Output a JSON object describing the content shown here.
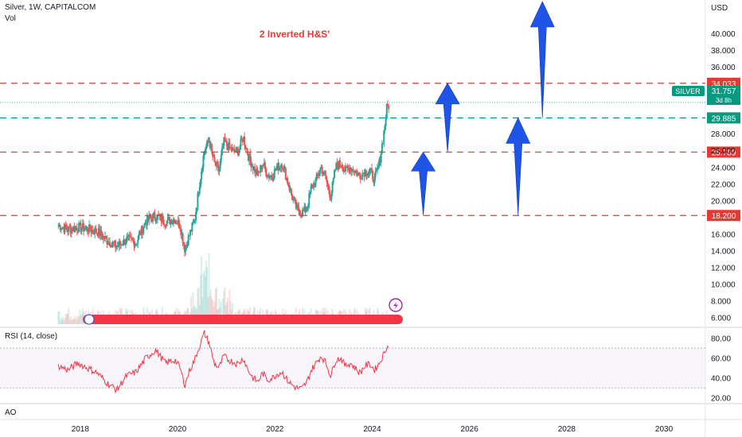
{
  "header": {
    "symbol_line": "Silver, 1W, CAPITALCOM",
    "vol_label": "Vol",
    "currency": "USD"
  },
  "annotation": {
    "text": "2 Inverted H&S'",
    "color": "#e53935"
  },
  "rsi": {
    "label": "RSI (14, close)",
    "levels": [
      70,
      30
    ]
  },
  "ao": {
    "label": "AO"
  },
  "colors": {
    "up": "#26a69a",
    "down": "#ef5350",
    "support": "#e53935",
    "neckline": "#089981",
    "arrow": "#1e55e6",
    "rsi_line": "#f23645"
  },
  "chart_data": [
    {
      "type": "line",
      "title": "",
      "series": [
        {
          "name": "",
          "x": [
            2017.6,
            2017.8,
            2018.0,
            2018.2,
            2018.4,
            2018.6,
            2018.8,
            2019.0,
            2019.2,
            2019.4,
            2019.6,
            2019.8,
            2020.0,
            2020.1,
            2020.2,
            2020.3,
            2020.4,
            2020.5,
            2020.6,
            2020.7,
            2020.8,
            2020.9,
            2021.0,
            2021.1,
            2021.2,
            2021.3,
            2021.4,
            2021.5,
            2021.6,
            2021.7,
            2021.8,
            2021.9,
            2022.0,
            2022.1,
            2022.2,
            2022.3,
            2022.4,
            2022.5,
            2022.6,
            2022.7,
            2022.8,
            2022.9,
            2023.0,
            2023.1,
            2023.2,
            2023.3,
            2023.4,
            2023.5,
            2023.6,
            2023.7,
            2023.8,
            2023.9,
            2024.0,
            2024.1,
            2024.2,
            2024.3,
            2024.35,
            2024.4
          ],
          "y": [
            17.0,
            16.5,
            16.8,
            16.6,
            16.3,
            15.2,
            14.5,
            15.3,
            15.0,
            17.5,
            18.2,
            17.5,
            17.8,
            17.0,
            14.2,
            16.0,
            17.6,
            22.0,
            26.0,
            27.2,
            24.5,
            23.5,
            27.0,
            26.4,
            25.8,
            26.0,
            27.6,
            25.4,
            24.0,
            23.0,
            24.5,
            23.0,
            23.0,
            24.0,
            24.5,
            22.5,
            20.5,
            19.0,
            18.5,
            19.0,
            21.5,
            22.5,
            24.0,
            22.5,
            20.5,
            24.0,
            24.5,
            23.5,
            24.0,
            23.5,
            23.0,
            23.5,
            23.5,
            22.5,
            24.5,
            28.5,
            31.0,
            31.5
          ]
        }
      ],
      "xlim": [
        2016.4,
        2030.9
      ],
      "ylim": [
        5.0,
        44.0
      ],
      "y_ticks": [
        "40.000",
        "38.000",
        "36.000",
        "28.000",
        "26.000",
        "24.000",
        "22.000",
        "20.000",
        "16.000",
        "14.000",
        "12.000",
        "10.000",
        "8.000",
        "6.000"
      ],
      "y_tick_values": [
        40,
        38,
        36,
        28,
        26,
        24,
        22,
        20,
        16,
        14,
        12,
        10,
        8,
        6
      ],
      "x_ticks": [
        "2018",
        "2020",
        "2022",
        "2024",
        "2026",
        "2028",
        "2030"
      ],
      "x_tick_values": [
        2018.05,
        2020.05,
        2022.05,
        2024.05,
        2026.05,
        2028.05,
        2030.05
      ],
      "horizontal_lines": [
        {
          "value": 34.033,
          "label": "34.033",
          "style": "dashed",
          "color": "#e53935"
        },
        {
          "value": 29.885,
          "label": "29.885",
          "style": "dashed",
          "color": "#089981"
        },
        {
          "value": 25.789,
          "label": "25.789",
          "style": "dashed",
          "color": "#e53935"
        },
        {
          "value": 18.2,
          "label": "18.200",
          "style": "dashed",
          "color": "#e53935"
        }
      ],
      "last_price": {
        "symbol": "SILVER",
        "value": "31.757",
        "countdown": "3d 8h",
        "color": "#089981"
      },
      "arrows": [
        {
          "x0": 2025.1,
          "y0": 18.2,
          "x1": 2025.1,
          "y1": 25.789
        },
        {
          "x0": 2025.6,
          "y0": 25.789,
          "x1": 2025.6,
          "y1": 34.033
        },
        {
          "x0": 2027.05,
          "y0": 18.2,
          "x1": 2027.05,
          "y1": 29.885
        },
        {
          "x0": 2027.55,
          "y0": 29.885,
          "x1": 2027.55,
          "y1": 44.0
        }
      ]
    },
    {
      "type": "line",
      "title": "RSI (14, close)",
      "series": [
        {
          "name": "",
          "x": [
            2017.6,
            2017.8,
            2018.0,
            2018.2,
            2018.4,
            2018.6,
            2018.8,
            2019.0,
            2019.2,
            2019.4,
            2019.6,
            2019.8,
            2020.0,
            2020.1,
            2020.2,
            2020.3,
            2020.4,
            2020.5,
            2020.6,
            2020.7,
            2020.8,
            2020.9,
            2021.0,
            2021.1,
            2021.2,
            2021.3,
            2021.4,
            2021.5,
            2021.6,
            2021.7,
            2021.8,
            2021.9,
            2022.0,
            2022.1,
            2022.2,
            2022.3,
            2022.4,
            2022.5,
            2022.6,
            2022.7,
            2022.8,
            2022.9,
            2023.0,
            2023.1,
            2023.2,
            2023.3,
            2023.4,
            2023.5,
            2023.6,
            2023.7,
            2023.8,
            2023.9,
            2024.0,
            2024.1,
            2024.2,
            2024.3,
            2024.35,
            2024.4
          ],
          "y": [
            52,
            48,
            55,
            50,
            45,
            35,
            28,
            42,
            46,
            60,
            68,
            55,
            58,
            50,
            33,
            48,
            58,
            72,
            85,
            75,
            55,
            50,
            62,
            58,
            56,
            54,
            60,
            48,
            40,
            36,
            45,
            38,
            40,
            44,
            46,
            38,
            33,
            30,
            29,
            35,
            48,
            55,
            62,
            55,
            42,
            58,
            60,
            52,
            55,
            50,
            45,
            52,
            54,
            48,
            55,
            65,
            72,
            70
          ]
        }
      ],
      "ylim": [
        15,
        90
      ],
      "y_ticks": [
        "80.00",
        "60.00",
        "40.00",
        "20.00"
      ],
      "y_tick_values": [
        80,
        60,
        40,
        20
      ]
    }
  ]
}
